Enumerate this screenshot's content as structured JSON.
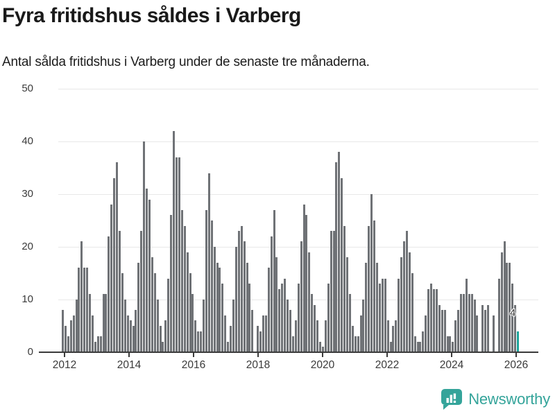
{
  "header": {
    "title": "Fyra fritidshus såldes i Varberg",
    "subtitle": "Antal sålda fritidshus i Varberg under de senaste tre månaderna."
  },
  "chart_data": {
    "type": "bar",
    "title": "Fyra fritidshus såldes i Varberg",
    "subtitle": "Antal sålda fritidshus i Varberg under de senaste tre månaderna.",
    "x_start": "2012-01",
    "x_frequency": "monthly",
    "x_tick_labels": [
      "2012",
      "2014",
      "2016",
      "2018",
      "2020",
      "2022",
      "2024",
      "2026"
    ],
    "yticks": [
      0,
      10,
      20,
      30,
      40,
      50
    ],
    "ylim": [
      0,
      50
    ],
    "grid": true,
    "legend": false,
    "values": [
      8,
      5,
      3,
      6,
      7,
      10,
      16,
      21,
      16,
      16,
      11,
      7,
      2,
      3,
      3,
      11,
      11,
      22,
      28,
      33,
      36,
      23,
      15,
      10,
      7,
      6,
      5,
      8,
      17,
      23,
      40,
      31,
      29,
      18,
      15,
      10,
      5,
      2,
      6,
      14,
      26,
      42,
      37,
      37,
      27,
      24,
      19,
      15,
      11,
      6,
      4,
      4,
      10,
      27,
      34,
      25,
      20,
      17,
      16,
      13,
      7,
      2,
      5,
      10,
      20,
      23,
      24,
      21,
      17,
      13,
      8,
      0,
      5,
      4,
      7,
      7,
      16,
      22,
      27,
      18,
      12,
      13,
      14,
      10,
      8,
      3,
      6,
      13,
      21,
      28,
      26,
      19,
      11,
      9,
      6,
      2,
      1,
      6,
      13,
      23,
      23,
      36,
      38,
      33,
      24,
      18,
      11,
      5,
      3,
      3,
      7,
      10,
      17,
      24,
      30,
      25,
      17,
      13,
      14,
      14,
      6,
      2,
      5,
      6,
      14,
      18,
      21,
      23,
      19,
      15,
      3,
      2,
      2,
      4,
      7,
      12,
      13,
      12,
      12,
      9,
      8,
      8,
      3,
      3,
      2,
      6,
      8,
      11,
      11,
      14,
      11,
      11,
      10,
      7,
      0,
      9,
      8,
      9,
      0,
      7,
      0,
      14,
      19,
      21,
      17,
      17,
      13,
      9,
      4
    ],
    "highlight": {
      "index_from_end": 0,
      "value": 4,
      "label": "4",
      "color": "#1ca49a"
    },
    "bar_color": "#6f7276",
    "grid_color": "#e8e8e8",
    "axis_color": "#3a3a3a",
    "tick_label_color": "#3a3a3a"
  },
  "footer": {
    "brand": "Newsworthy",
    "brand_color": "#34a49a"
  }
}
